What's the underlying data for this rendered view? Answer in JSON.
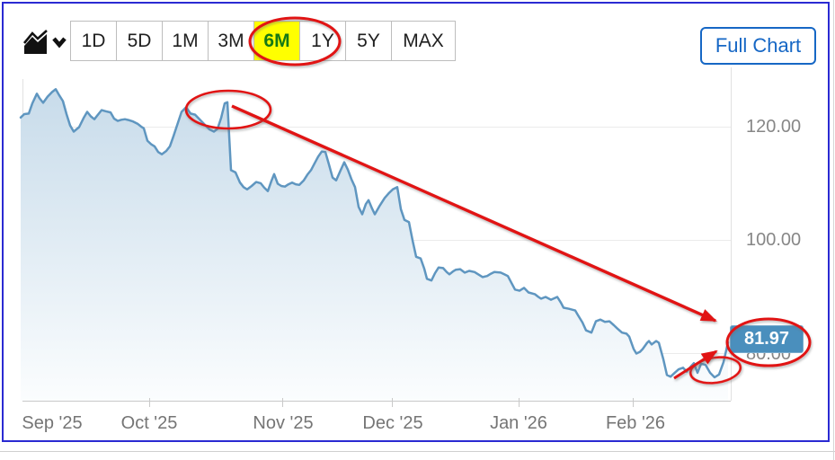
{
  "window": {
    "border_color": "#2a2ad2"
  },
  "toolbar": {
    "chart_type_icon": "area-chart-icon with chevron-down",
    "ranges": [
      {
        "label": "1D",
        "active": false
      },
      {
        "label": "5D",
        "active": false
      },
      {
        "label": "1M",
        "active": false
      },
      {
        "label": "3M",
        "active": false
      },
      {
        "label": "6M",
        "active": true
      },
      {
        "label": "1Y",
        "active": false
      },
      {
        "label": "5Y",
        "active": false
      },
      {
        "label": "MAX",
        "active": false
      }
    ],
    "active_range_bg": "#ffff00",
    "active_range_color": "#157915",
    "full_chart_label": "Full Chart",
    "full_chart_color": "#1667c5"
  },
  "chart_data": {
    "type": "area",
    "title": "",
    "x_axis": {
      "labels": [
        "Sep '25",
        "Oct '25",
        "Nov '25",
        "Dec '25",
        "Jan '26",
        "Feb '26"
      ]
    },
    "y_axis": {
      "tick_labels": [
        "120.00",
        "100.00",
        "80.00"
      ],
      "ticks": [
        120,
        100,
        80
      ],
      "ylim": [
        73,
        128
      ]
    },
    "last_price": "81.97",
    "line_color": "#5f96c0",
    "fill_top": "#c7dbea",
    "fill_bottom": "#fbfdfe",
    "badge_bg": "#4a8fbd",
    "grid": true,
    "points": [
      [
        23,
        121.7
      ],
      [
        27,
        122.3
      ],
      [
        32,
        122.4
      ],
      [
        36,
        124.2
      ],
      [
        41,
        125.9
      ],
      [
        44,
        125.1
      ],
      [
        48,
        124.3
      ],
      [
        53,
        125.4
      ],
      [
        58,
        126.2
      ],
      [
        62,
        126.7
      ],
      [
        66,
        125.6
      ],
      [
        70,
        124.6
      ],
      [
        74,
        122.3
      ],
      [
        78,
        120.3
      ],
      [
        82,
        119.2
      ],
      [
        88,
        120.0
      ],
      [
        93,
        121.6
      ],
      [
        97,
        122.7
      ],
      [
        101,
        121.9
      ],
      [
        105,
        121.4
      ],
      [
        109,
        122.2
      ],
      [
        113,
        123.0
      ],
      [
        118,
        122.8
      ],
      [
        123,
        122.6
      ],
      [
        127,
        121.5
      ],
      [
        131,
        121.1
      ],
      [
        135,
        121.3
      ],
      [
        139,
        121.4
      ],
      [
        144,
        121.2
      ],
      [
        148,
        121.0
      ],
      [
        153,
        120.6
      ],
      [
        157,
        120.1
      ],
      [
        160,
        119.8
      ],
      [
        164,
        117.6
      ],
      [
        168,
        117.0
      ],
      [
        172,
        116.6
      ],
      [
        176,
        115.6
      ],
      [
        180,
        115.2
      ],
      [
        185,
        115.8
      ],
      [
        189,
        116.6
      ],
      [
        193,
        118.4
      ],
      [
        198,
        120.8
      ],
      [
        202,
        122.7
      ],
      [
        207,
        123.5
      ],
      [
        212,
        122.4
      ],
      [
        217,
        122.2
      ],
      [
        222,
        121.4
      ],
      [
        228,
        120.4
      ],
      [
        233,
        119.6
      ],
      [
        238,
        119.2
      ],
      [
        242,
        119.7
      ],
      [
        246,
        121.6
      ],
      [
        250,
        124.2
      ],
      [
        253,
        124.4
      ],
      [
        257,
        112.4
      ],
      [
        262,
        112.0
      ],
      [
        267,
        110.2
      ],
      [
        271,
        109.4
      ],
      [
        275,
        109.0
      ],
      [
        280,
        109.6
      ],
      [
        285,
        110.3
      ],
      [
        290,
        110.1
      ],
      [
        294,
        109.3
      ],
      [
        298,
        108.7
      ],
      [
        302,
        110.5
      ],
      [
        305,
        111.7
      ],
      [
        309,
        110.0
      ],
      [
        313,
        109.6
      ],
      [
        317,
        109.5
      ],
      [
        321,
        109.9
      ],
      [
        325,
        110.2
      ],
      [
        329,
        109.9
      ],
      [
        333,
        109.8
      ],
      [
        338,
        110.6
      ],
      [
        342,
        111.6
      ],
      [
        346,
        112.4
      ],
      [
        350,
        113.6
      ],
      [
        354,
        114.8
      ],
      [
        358,
        115.7
      ],
      [
        362,
        115.6
      ],
      [
        366,
        113.4
      ],
      [
        370,
        111.1
      ],
      [
        374,
        110.6
      ],
      [
        379,
        112.4
      ],
      [
        383,
        113.8
      ],
      [
        387,
        112.5
      ],
      [
        391,
        110.8
      ],
      [
        395,
        109.4
      ],
      [
        399,
        105.9
      ],
      [
        403,
        104.6
      ],
      [
        407,
        106.4
      ],
      [
        410,
        107.1
      ],
      [
        414,
        105.6
      ],
      [
        417,
        104.6
      ],
      [
        422,
        106.0
      ],
      [
        428,
        107.5
      ],
      [
        433,
        108.4
      ],
      [
        437,
        109.0
      ],
      [
        442,
        109.4
      ],
      [
        446,
        105.5
      ],
      [
        450,
        103.6
      ],
      [
        455,
        103.2
      ],
      [
        459,
        100.0
      ],
      [
        463,
        97.1
      ],
      [
        468,
        96.8
      ],
      [
        472,
        95.0
      ],
      [
        475,
        93.2
      ],
      [
        480,
        92.9
      ],
      [
        484,
        94.2
      ],
      [
        488,
        95.2
      ],
      [
        493,
        95.1
      ],
      [
        497,
        94.4
      ],
      [
        500,
        94.0
      ],
      [
        504,
        94.5
      ],
      [
        507,
        94.8
      ],
      [
        512,
        94.9
      ],
      [
        517,
        94.3
      ],
      [
        522,
        94.6
      ],
      [
        528,
        94.4
      ],
      [
        533,
        93.9
      ],
      [
        537,
        93.5
      ],
      [
        542,
        93.7
      ],
      [
        546,
        94.1
      ],
      [
        550,
        94.4
      ],
      [
        557,
        94.3
      ],
      [
        561,
        94.0
      ],
      [
        565,
        93.7
      ],
      [
        569,
        92.5
      ],
      [
        573,
        91.3
      ],
      [
        578,
        91.1
      ],
      [
        583,
        91.6
      ],
      [
        588,
        90.8
      ],
      [
        595,
        90.5
      ],
      [
        599,
        90.0
      ],
      [
        602,
        89.7
      ],
      [
        607,
        90.0
      ],
      [
        613,
        89.5
      ],
      [
        620,
        90.0
      ],
      [
        624,
        89.0
      ],
      [
        627,
        88.1
      ],
      [
        633,
        87.9
      ],
      [
        640,
        87.6
      ],
      [
        643,
        86.8
      ],
      [
        648,
        85.5
      ],
      [
        652,
        84.1
      ],
      [
        658,
        83.7
      ],
      [
        663,
        85.7
      ],
      [
        668,
        86.0
      ],
      [
        673,
        85.6
      ],
      [
        678,
        85.7
      ],
      [
        683,
        85.0
      ],
      [
        687,
        84.4
      ],
      [
        692,
        83.7
      ],
      [
        697,
        83.5
      ],
      [
        700,
        83.0
      ],
      [
        705,
        80.8
      ],
      [
        708,
        80.0
      ],
      [
        712,
        80.3
      ],
      [
        715,
        80.8
      ],
      [
        720,
        81.9
      ],
      [
        722,
        82.2
      ],
      [
        725,
        81.6
      ],
      [
        730,
        82.2
      ],
      [
        733,
        81.9
      ],
      [
        738,
        79.0
      ],
      [
        742,
        76.2
      ],
      [
        746,
        75.9
      ],
      [
        750,
        76.5
      ],
      [
        755,
        77.2
      ],
      [
        760,
        77.5
      ],
      [
        764,
        76.8
      ],
      [
        768,
        77.6
      ],
      [
        772,
        78.3
      ],
      [
        776,
        76.6
      ],
      [
        780,
        78.2
      ],
      [
        785,
        78.0
      ],
      [
        790,
        76.6
      ],
      [
        795,
        75.8
      ],
      [
        800,
        76.3
      ],
      [
        805,
        78.5
      ],
      [
        810,
        81.97
      ]
    ]
  },
  "annotations": {
    "color": "#e11414",
    "items": [
      {
        "type": "ellipse",
        "target": "range-6m-button"
      },
      {
        "type": "ellipse",
        "target": "october-peak"
      },
      {
        "type": "ellipse",
        "target": "final-dip"
      },
      {
        "type": "ellipse",
        "target": "price-badge"
      },
      {
        "type": "arrow",
        "from": "october-peak",
        "to": "price-badge"
      },
      {
        "type": "arrow",
        "from": "final-dip",
        "to": "price-badge"
      }
    ]
  }
}
